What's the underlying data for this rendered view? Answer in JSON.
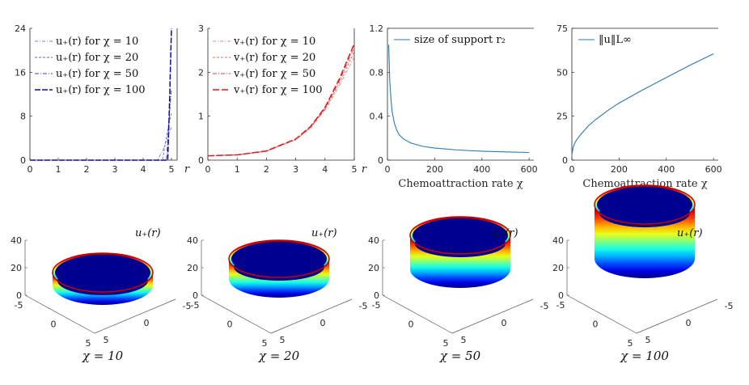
{
  "chart_data": [
    {
      "type": "line",
      "panel": "u-profiles",
      "xlabel": "r",
      "ylabel": "",
      "xlim": [
        0,
        5.2
      ],
      "ylim": [
        0,
        24
      ],
      "xticks": [
        "0",
        "1",
        "2",
        "3",
        "4",
        "5"
      ],
      "yticks": [
        "0",
        "8",
        "16",
        "24"
      ],
      "legend": "top-left",
      "series": [
        {
          "name": "u₊(r) for χ = 10",
          "color": "#7b7bd6",
          "dash": "4,2,1,2",
          "x": [
            0,
            4.5,
            4.7,
            4.85,
            5.0
          ],
          "values": [
            0,
            0,
            1.8,
            4.0,
            6.0
          ]
        },
        {
          "name": "u₊(r) for χ = 20",
          "color": "#6161cf",
          "dash": "3,2",
          "x": [
            0,
            4.68,
            4.8,
            4.9,
            5.0
          ],
          "values": [
            0,
            0,
            3.5,
            6.5,
            8.5
          ]
        },
        {
          "name": "u₊(r) for χ = 50",
          "color": "#3f3fc4",
          "dash": "5,2,1,2",
          "x": [
            0,
            4.82,
            4.9,
            4.96,
            5.0
          ],
          "values": [
            0,
            0,
            6.0,
            10.5,
            13.0
          ]
        },
        {
          "name": "u₊(r) for χ = 100",
          "color": "#0d0d9e",
          "dash": "7,2",
          "x": [
            0,
            4.87,
            4.93,
            4.97,
            5.0
          ],
          "values": [
            0,
            0,
            10.0,
            18.0,
            24.0
          ]
        }
      ]
    },
    {
      "type": "line",
      "panel": "v-profiles",
      "xlabel": "r",
      "ylabel": "",
      "xlim": [
        0,
        5
      ],
      "ylim": [
        0,
        3
      ],
      "xticks": [
        "0",
        "1",
        "2",
        "3",
        "4",
        "5"
      ],
      "yticks": [
        "0",
        "1",
        "2",
        "3"
      ],
      "legend": "top-left",
      "series": [
        {
          "name": "v₊(r) for χ = 10",
          "color": "#ee8a8a",
          "dash": "4,2,1,2",
          "x": [
            0,
            1,
            2,
            3,
            3.5,
            4,
            4.5,
            5
          ],
          "values": [
            0.1,
            0.12,
            0.2,
            0.46,
            0.72,
            1.13,
            1.7,
            2.35
          ]
        },
        {
          "name": "v₊(r) for χ = 20",
          "color": "#e86464",
          "dash": "3,2",
          "x": [
            0,
            1,
            2,
            3,
            3.5,
            4,
            4.5,
            5
          ],
          "values": [
            0.1,
            0.12,
            0.2,
            0.47,
            0.74,
            1.16,
            1.76,
            2.47
          ]
        },
        {
          "name": "v₊(r) for χ = 50",
          "color": "#e03a3a",
          "dash": "5,2,1,2",
          "x": [
            0,
            1,
            2,
            3,
            3.5,
            4,
            4.5,
            5
          ],
          "values": [
            0.1,
            0.12,
            0.21,
            0.48,
            0.75,
            1.18,
            1.82,
            2.57
          ]
        },
        {
          "name": "v₊(r) for χ = 100",
          "color": "#d81c1c",
          "dash": "8,3",
          "x": [
            0,
            1,
            2,
            3,
            3.5,
            4,
            4.5,
            5
          ],
          "values": [
            0.1,
            0.12,
            0.21,
            0.48,
            0.76,
            1.2,
            1.86,
            2.65
          ]
        }
      ]
    },
    {
      "type": "line",
      "panel": "support-size",
      "xlabel": "Chemoattraction rate χ",
      "ylabel": "",
      "xlim": [
        0,
        620
      ],
      "ylim": [
        0,
        1.2
      ],
      "xticks": [
        "0",
        "200",
        "400",
        "600"
      ],
      "yticks": [
        "0",
        "0.4",
        "0.8",
        "1.2"
      ],
      "legend": "top-right",
      "series": [
        {
          "name": "size of support r₂",
          "color": "#2a7ab5",
          "x": [
            5,
            10,
            15,
            20,
            30,
            40,
            50,
            70,
            100,
            150,
            200,
            300,
            400,
            500,
            600
          ],
          "values": [
            1.05,
            0.72,
            0.55,
            0.44,
            0.33,
            0.27,
            0.23,
            0.19,
            0.155,
            0.125,
            0.11,
            0.092,
            0.082,
            0.075,
            0.07
          ]
        }
      ]
    },
    {
      "type": "line",
      "panel": "sup-norm",
      "xlabel": "Chemoattraction rate χ",
      "ylabel": "",
      "xlim": [
        0,
        620
      ],
      "ylim": [
        0,
        75
      ],
      "xticks": [
        "0",
        "200",
        "400",
        "600"
      ],
      "yticks": [
        "0",
        "25",
        "50",
        "75"
      ],
      "legend": "top-right",
      "series": [
        {
          "name": "‖u‖L∞",
          "color": "#2a7ab5",
          "x": [
            0,
            5,
            10,
            20,
            40,
            70,
            100,
            150,
            200,
            300,
            400,
            500,
            600
          ],
          "values": [
            3,
            7,
            9,
            11.5,
            15,
            19.5,
            23,
            28,
            32.5,
            40,
            47,
            54,
            60.5
          ]
        }
      ]
    }
  ],
  "surfaces": {
    "zlabel": "u₊(r)",
    "zticks": [
      "0",
      "20",
      "40"
    ],
    "xticks": [
      "-5",
      "0",
      "5"
    ],
    "yticks": [
      "-5",
      "0",
      "5"
    ],
    "panels": [
      {
        "caption": "χ = 10",
        "chi": 10,
        "wall_height": 6
      },
      {
        "caption": "χ = 20",
        "chi": 20,
        "wall_height": 8.5
      },
      {
        "caption": "χ = 50",
        "chi": 50,
        "wall_height": 13
      },
      {
        "caption": "χ = 100",
        "chi": 100,
        "wall_height": 24
      }
    ]
  },
  "colors": {
    "axis": "#262626",
    "floor": "#00008f",
    "red": "#c80000"
  }
}
